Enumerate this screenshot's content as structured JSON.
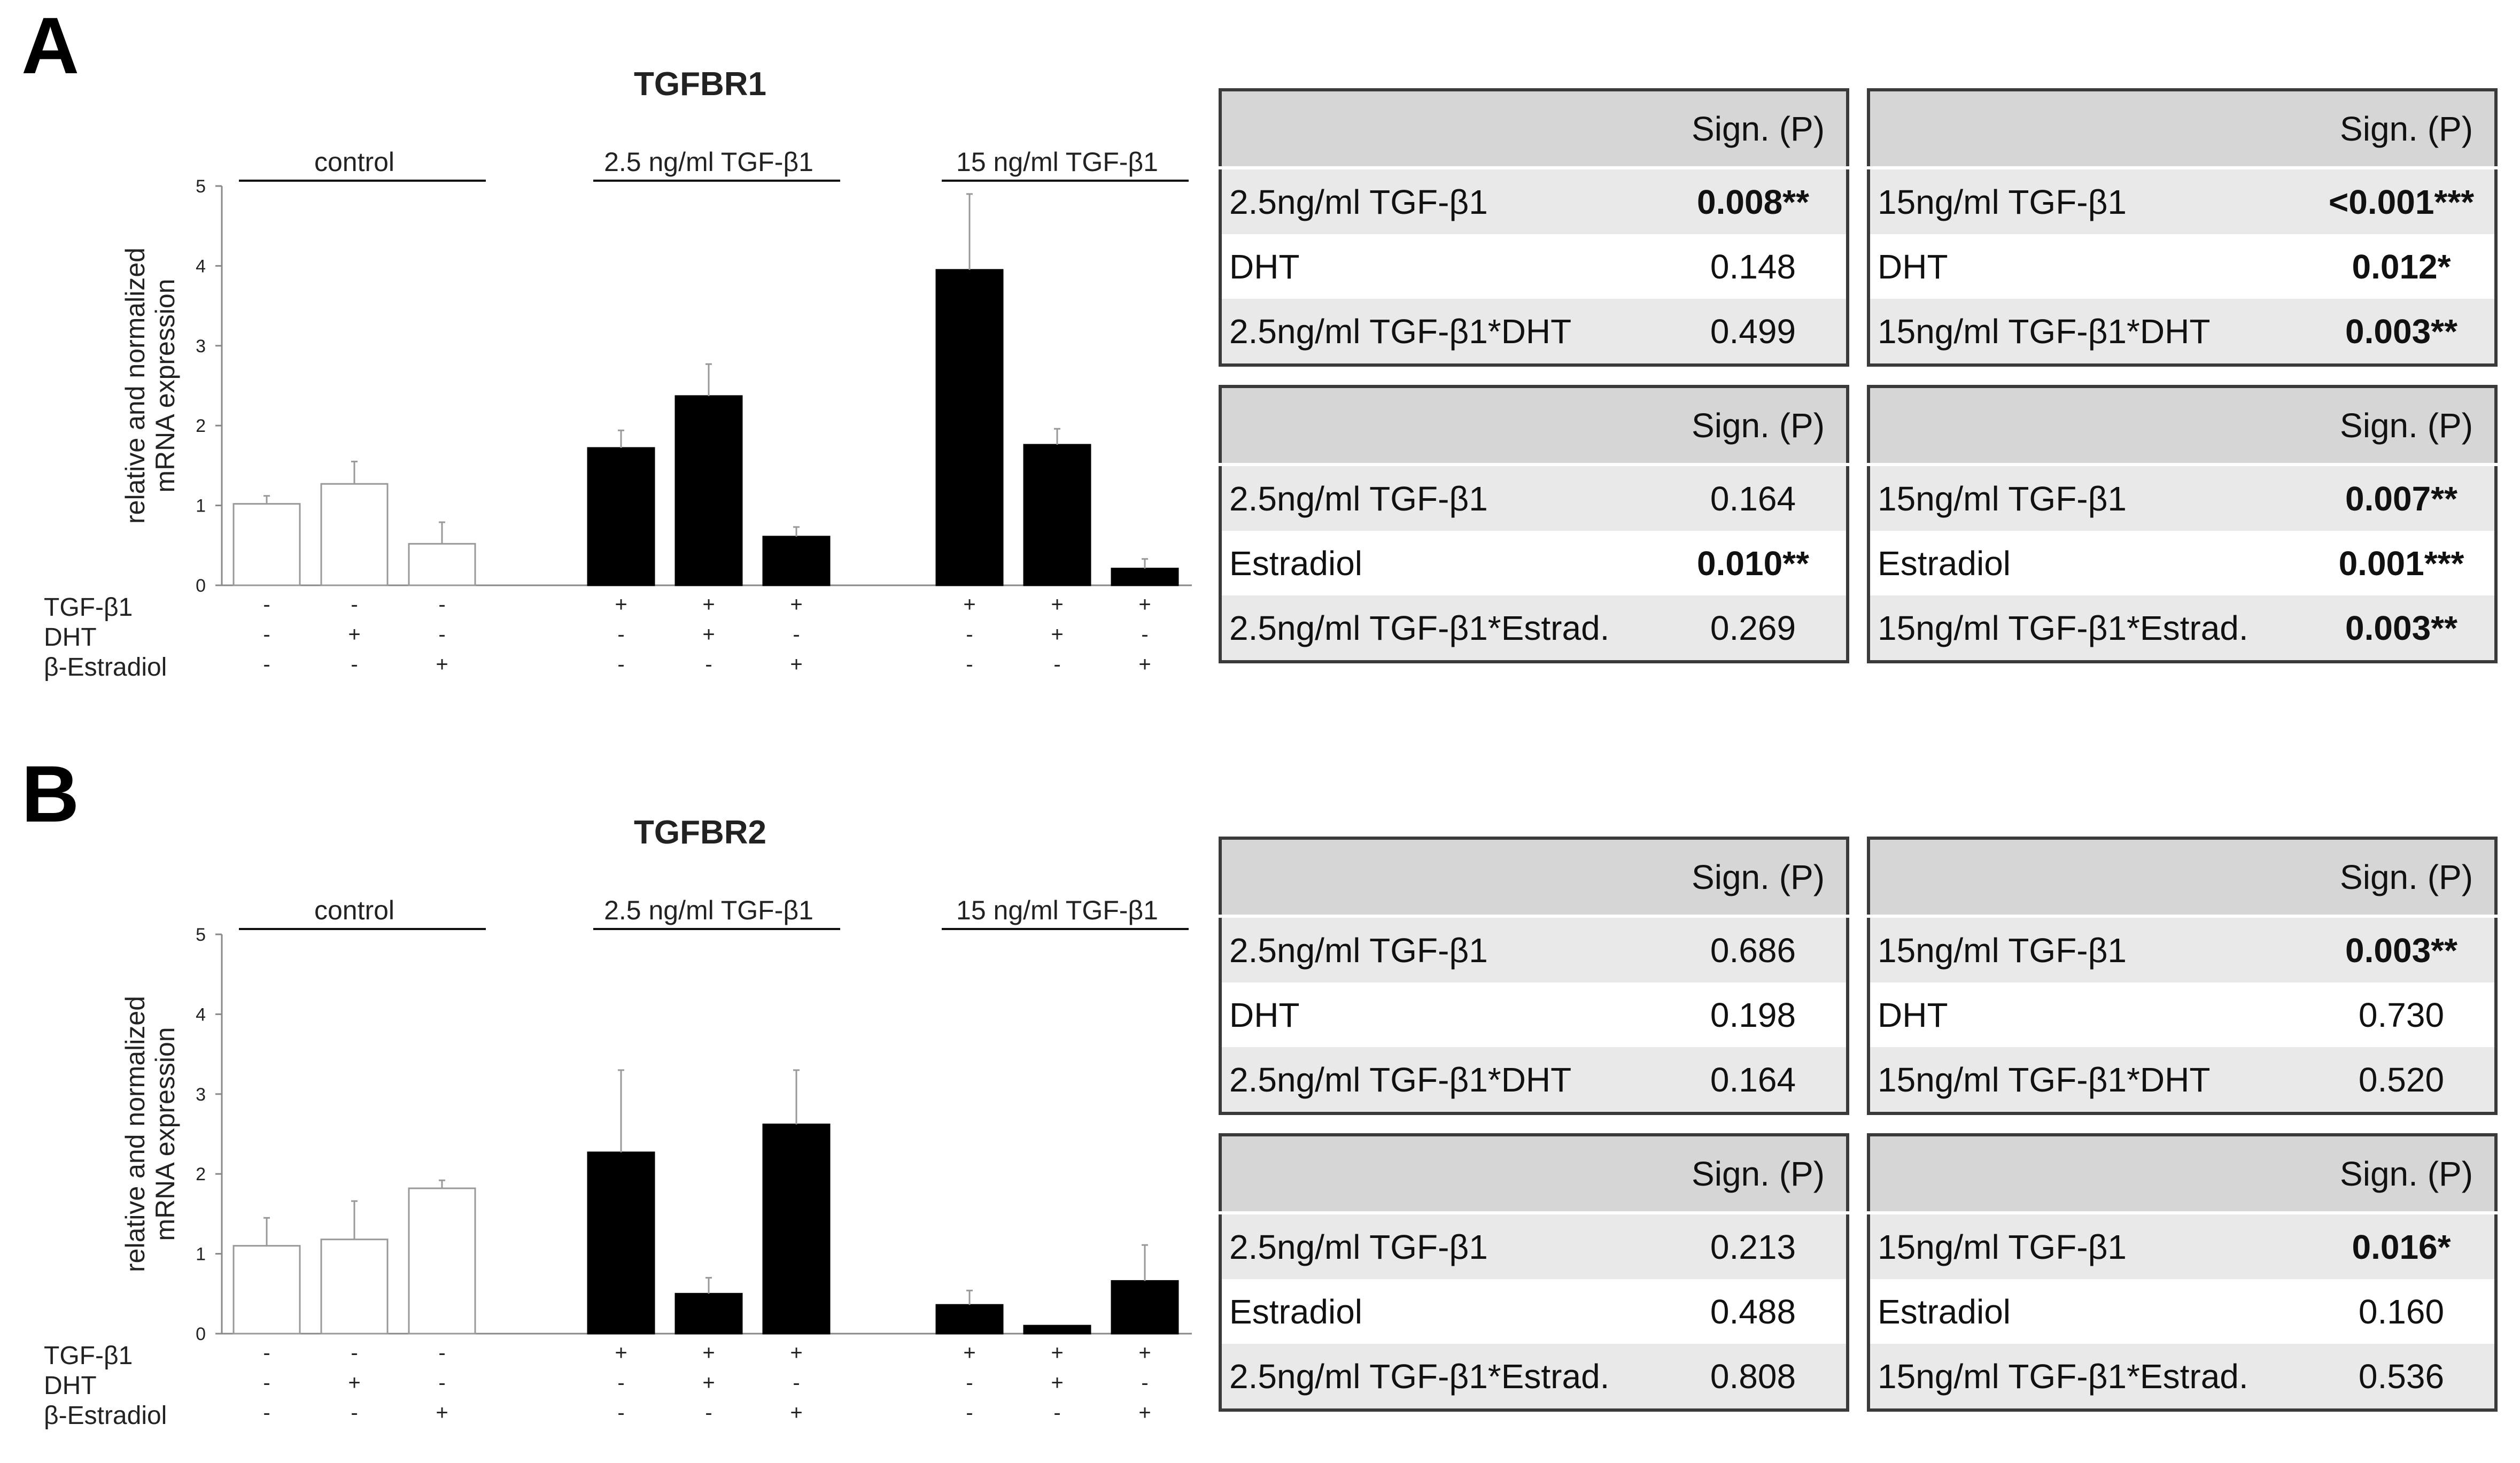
{
  "panels": [
    {
      "letter": "A",
      "chart_data": {
        "type": "bar",
        "title": "TGFBR1",
        "ylabel": "relative and normalized mRNA expression",
        "ylabel_lines": [
          "relative and normalized",
          "mRNA expression"
        ],
        "ylim": [
          0,
          5
        ],
        "yticks": [
          0,
          1,
          2,
          3,
          4,
          5
        ],
        "groups": [
          {
            "name": "control",
            "color": "#ffffff",
            "values": [
              1.02,
              1.27,
              0.52
            ],
            "errors": [
              0.1,
              0.28,
              0.27
            ]
          },
          {
            "name": "2.5 ng/ml TGF-β1",
            "color": "#000000",
            "values": [
              1.72,
              2.37,
              0.61
            ],
            "errors": [
              0.22,
              0.4,
              0.12
            ]
          },
          {
            "name": "15 ng/ml TGF-β1",
            "color": "#000000",
            "values": [
              3.95,
              1.76,
              0.21
            ],
            "errors": [
              0.95,
              0.2,
              0.12
            ]
          }
        ],
        "treatment_rows": [
          {
            "label": "TGF-β1",
            "signs": [
              "-",
              "-",
              "-",
              "+",
              "+",
              "+",
              "+",
              "+",
              "+"
            ]
          },
          {
            "label": "DHT",
            "signs": [
              "-",
              "+",
              "-",
              "-",
              "+",
              "-",
              "-",
              "+",
              "-"
            ]
          },
          {
            "label": "β-Estradiol",
            "signs": [
              "-",
              "-",
              "+",
              "-",
              "-",
              "+",
              "-",
              "-",
              "+"
            ]
          }
        ]
      },
      "tables": [
        {
          "header": "Sign. (P)",
          "rows": [
            {
              "label": "2.5ng/ml TGF-β1",
              "value": "0.008**",
              "bold": true
            },
            {
              "label": "DHT",
              "value": "0.148",
              "bold": false
            },
            {
              "label": "2.5ng/ml TGF-β1*DHT",
              "value": "0.499",
              "bold": false
            }
          ]
        },
        {
          "header": "Sign. (P)",
          "rows": [
            {
              "label": "15ng/ml TGF-β1",
              "value": "<0.001***",
              "bold": true
            },
            {
              "label": "DHT",
              "value": "0.012*",
              "bold": true
            },
            {
              "label": "15ng/ml TGF-β1*DHT",
              "value": "0.003**",
              "bold": true
            }
          ]
        },
        {
          "header": "Sign. (P)",
          "rows": [
            {
              "label": "2.5ng/ml TGF-β1",
              "value": "0.164",
              "bold": false
            },
            {
              "label": "Estradiol",
              "value": "0.010**",
              "bold": true
            },
            {
              "label": "2.5ng/ml TGF-β1*Estrad.",
              "value": "0.269",
              "bold": false
            }
          ]
        },
        {
          "header": "Sign. (P)",
          "rows": [
            {
              "label": "15ng/ml TGF-β1",
              "value": "0.007**",
              "bold": true
            },
            {
              "label": "Estradiol",
              "value": "0.001***",
              "bold": true
            },
            {
              "label": "15ng/ml TGF-β1*Estrad.",
              "value": "0.003**",
              "bold": true
            }
          ]
        }
      ]
    },
    {
      "letter": "B",
      "chart_data": {
        "type": "bar",
        "title": "TGFBR2",
        "ylabel": "relative and normalized mRNA expression",
        "ylabel_lines": [
          "relative and normalized",
          "mRNA expression"
        ],
        "ylim": [
          0,
          5
        ],
        "yticks": [
          0,
          1,
          2,
          3,
          4,
          5
        ],
        "groups": [
          {
            "name": "control",
            "color": "#ffffff",
            "values": [
              1.1,
              1.18,
              1.82
            ],
            "errors": [
              0.35,
              0.48,
              0.1
            ]
          },
          {
            "name": "2.5 ng/ml TGF-β1",
            "color": "#000000",
            "values": [
              2.27,
              0.5,
              2.62
            ],
            "errors": [
              1.03,
              0.2,
              0.68
            ]
          },
          {
            "name": "15 ng/ml TGF-β1",
            "color": "#000000",
            "values": [
              0.36,
              0.1,
              0.66
            ],
            "errors": [
              0.18,
              0.0,
              0.45
            ]
          }
        ],
        "treatment_rows": [
          {
            "label": "TGF-β1",
            "signs": [
              "-",
              "-",
              "-",
              "+",
              "+",
              "+",
              "+",
              "+",
              "+"
            ]
          },
          {
            "label": "DHT",
            "signs": [
              "-",
              "+",
              "-",
              "-",
              "+",
              "-",
              "-",
              "+",
              "-"
            ]
          },
          {
            "label": "β-Estradiol",
            "signs": [
              "-",
              "-",
              "+",
              "-",
              "-",
              "+",
              "-",
              "-",
              "+"
            ]
          }
        ]
      },
      "tables": [
        {
          "header": "Sign. (P)",
          "rows": [
            {
              "label": "2.5ng/ml TGF-β1",
              "value": "0.686",
              "bold": false
            },
            {
              "label": "DHT",
              "value": "0.198",
              "bold": false
            },
            {
              "label": "2.5ng/ml TGF-β1*DHT",
              "value": "0.164",
              "bold": false
            }
          ]
        },
        {
          "header": "Sign. (P)",
          "rows": [
            {
              "label": "15ng/ml TGF-β1",
              "value": "0.003**",
              "bold": true
            },
            {
              "label": "DHT",
              "value": "0.730",
              "bold": false
            },
            {
              "label": "15ng/ml TGF-β1*DHT",
              "value": "0.520",
              "bold": false
            }
          ]
        },
        {
          "header": "Sign. (P)",
          "rows": [
            {
              "label": "2.5ng/ml TGF-β1",
              "value": "0.213",
              "bold": false
            },
            {
              "label": "Estradiol",
              "value": "0.488",
              "bold": false
            },
            {
              "label": "2.5ng/ml TGF-β1*Estrad.",
              "value": "0.808",
              "bold": false
            }
          ]
        },
        {
          "header": "Sign. (P)",
          "rows": [
            {
              "label": "15ng/ml TGF-β1",
              "value": "0.016*",
              "bold": true
            },
            {
              "label": "Estradiol",
              "value": "0.160",
              "bold": false
            },
            {
              "label": "15ng/ml TGF-β1*Estrad.",
              "value": "0.536",
              "bold": false
            }
          ]
        }
      ]
    }
  ]
}
